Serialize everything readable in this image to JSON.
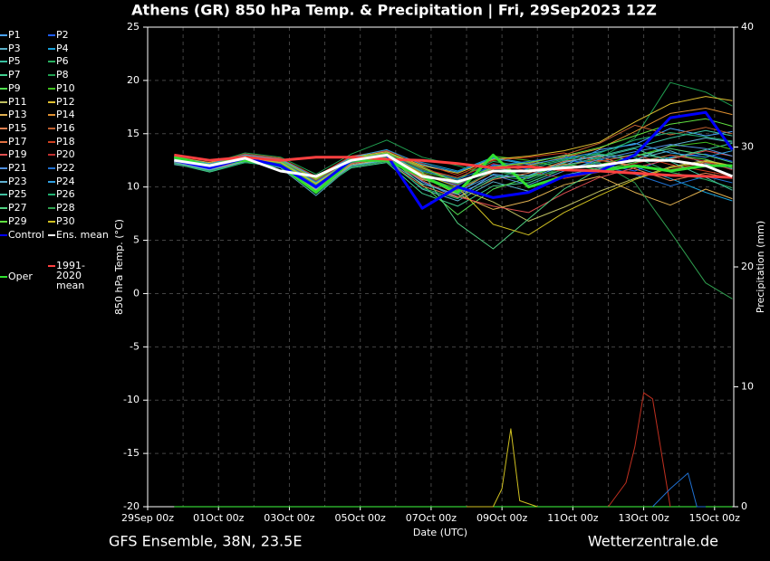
{
  "chart_data": {
    "type": "line",
    "title": "Athens  (GR)  850 hPa Temp. & Precipitation | Fri, 29Sep2023 12Z",
    "xlabel": "Date (UTC)",
    "ylabel": "850 hPa Temp. (°C)",
    "y2label": "Precipitation (mm)",
    "footer_left": "GFS Ensemble, 38N, 23.5E",
    "footer_right": "Wetterzentrale.de",
    "xlim": [
      0,
      397
    ],
    "ylim": [
      -20,
      25
    ],
    "y2lim": [
      0,
      40
    ],
    "grid": true,
    "xticks": [
      {
        "value": 0,
        "label": "29Sep 00z"
      },
      {
        "value": 48,
        "label": "01Oct 00z"
      },
      {
        "value": 96,
        "label": "03Oct 00z"
      },
      {
        "value": 144,
        "label": "05Oct 00z"
      },
      {
        "value": 192,
        "label": "07Oct 00z"
      },
      {
        "value": 240,
        "label": "09Oct 00z"
      },
      {
        "value": 288,
        "label": "11Oct 00z"
      },
      {
        "value": 336,
        "label": "13Oct 00z"
      },
      {
        "value": 384,
        "label": "15Oct 00z"
      }
    ],
    "xminorgrid": [
      24,
      72,
      120,
      168,
      216,
      264,
      312,
      360
    ],
    "yticks": [
      -20,
      -15,
      -10,
      -5,
      0,
      5,
      10,
      15,
      20,
      25
    ],
    "y2ticks": [
      0,
      10,
      20,
      30,
      40
    ],
    "x": [
      18,
      42,
      66,
      90,
      114,
      138,
      162,
      186,
      210,
      234,
      258,
      282,
      306,
      330,
      354,
      378,
      396
    ],
    "series": [
      {
        "name": "P1",
        "color": "#4aa3ff",
        "values": [
          12.3,
          11.5,
          12.4,
          12.1,
          9.8,
          12.2,
          12.8,
          10.5,
          9.0,
          11.2,
          10.8,
          12.0,
          13.5,
          14.0,
          15.5,
          14.8,
          15.2
        ]
      },
      {
        "name": "P2",
        "color": "#1e5cff",
        "values": [
          12.6,
          11.8,
          12.9,
          12.4,
          10.5,
          12.6,
          13.4,
          11.2,
          10.1,
          12.1,
          11.7,
          12.5,
          12.2,
          11.5,
          12.8,
          13.1,
          12.4
        ]
      },
      {
        "name": "P3",
        "color": "#5ab0c8",
        "values": [
          12.1,
          11.6,
          12.5,
          11.8,
          9.2,
          12.0,
          12.6,
          9.8,
          8.7,
          10.5,
          9.6,
          11.1,
          11.8,
          12.6,
          13.4,
          12.2,
          11.7
        ]
      },
      {
        "name": "P4",
        "color": "#18a0d8",
        "values": [
          12.8,
          12.1,
          13.1,
          12.6,
          10.9,
          12.9,
          13.0,
          12.3,
          11.5,
          12.8,
          12.2,
          13.0,
          12.6,
          11.9,
          10.8,
          9.5,
          8.7
        ]
      },
      {
        "name": "P5",
        "color": "#38c0a0",
        "values": [
          12.4,
          11.9,
          12.7,
          12.2,
          10.1,
          12.4,
          12.5,
          10.9,
          9.4,
          11.6,
          11.0,
          12.3,
          12.9,
          13.7,
          14.6,
          15.3,
          14.8
        ]
      },
      {
        "name": "P6",
        "color": "#28b060",
        "values": [
          12.7,
          12.0,
          12.8,
          12.5,
          10.6,
          12.7,
          13.2,
          11.6,
          10.8,
          12.4,
          11.9,
          12.6,
          13.1,
          12.8,
          11.4,
          10.7,
          9.9
        ]
      },
      {
        "name": "P7",
        "color": "#40d090",
        "values": [
          12.2,
          11.4,
          12.3,
          11.9,
          9.6,
          11.8,
          12.3,
          9.4,
          8.2,
          10.1,
          10.4,
          11.7,
          12.4,
          13.1,
          12.7,
          13.5,
          14.1
        ]
      },
      {
        "name": "P8",
        "color": "#20a050",
        "values": [
          12.9,
          12.2,
          13.2,
          12.8,
          11.2,
          13.1,
          14.4,
          12.8,
          12.0,
          11.1,
          10.6,
          11.9,
          12.7,
          14.6,
          19.8,
          18.9,
          17.6
        ]
      },
      {
        "name": "P9",
        "color": "#50e050",
        "values": [
          12.5,
          11.7,
          12.6,
          12.0,
          9.9,
          12.3,
          12.9,
          10.2,
          7.4,
          9.8,
          10.9,
          12.2,
          11.6,
          12.3,
          13.0,
          12.6,
          11.8
        ]
      },
      {
        "name": "P10",
        "color": "#40c020",
        "values": [
          12.6,
          11.9,
          12.9,
          12.3,
          10.3,
          12.5,
          13.1,
          11.4,
          10.6,
          12.9,
          12.5,
          11.8,
          12.1,
          12.9,
          13.8,
          14.2,
          13.5
        ]
      },
      {
        "name": "P11",
        "color": "#c0c060",
        "values": [
          12.3,
          11.6,
          12.5,
          12.1,
          9.7,
          12.1,
          12.6,
          10.7,
          9.9,
          8.6,
          6.8,
          8.1,
          9.6,
          10.8,
          11.9,
          12.5,
          12.0
        ]
      },
      {
        "name": "P12",
        "color": "#e0c030",
        "values": [
          12.8,
          12.3,
          13.0,
          12.7,
          10.8,
          12.8,
          13.3,
          12.0,
          11.3,
          12.6,
          12.9,
          13.4,
          14.2,
          16.1,
          17.8,
          18.5,
          18.1
        ]
      },
      {
        "name": "P13",
        "color": "#e0b050",
        "values": [
          12.4,
          11.8,
          12.7,
          12.2,
          10.2,
          12.4,
          13.0,
          11.0,
          9.3,
          7.9,
          8.7,
          10.2,
          11.0,
          9.5,
          8.3,
          9.8,
          8.9
        ]
      },
      {
        "name": "P14",
        "color": "#e09030",
        "values": [
          12.7,
          12.1,
          13.0,
          12.6,
          10.7,
          12.7,
          13.2,
          11.9,
          10.5,
          11.7,
          12.0,
          12.8,
          13.6,
          15.2,
          16.9,
          17.4,
          16.8
        ]
      },
      {
        "name": "P15",
        "color": "#e08050",
        "values": [
          12.2,
          11.5,
          12.4,
          12.0,
          9.5,
          11.9,
          12.4,
          10.1,
          9.0,
          10.7,
          11.3,
          12.4,
          12.9,
          11.7,
          10.6,
          11.3,
          10.8
        ]
      },
      {
        "name": "P16",
        "color": "#c06030",
        "values": [
          12.6,
          12.0,
          12.8,
          12.4,
          10.4,
          12.6,
          13.1,
          11.3,
          10.2,
          11.9,
          12.2,
          13.0,
          14.1,
          15.8,
          14.9,
          15.6,
          15.0
        ]
      },
      {
        "name": "P17",
        "color": "#e07040",
        "values": [
          12.5,
          11.8,
          12.6,
          12.3,
          10.0,
          12.4,
          12.8,
          10.8,
          9.7,
          11.4,
          11.6,
          12.1,
          12.5,
          12.0,
          11.6,
          12.3,
          11.9
        ]
      },
      {
        "name": "P18",
        "color": "#d04020",
        "values": [
          12.8,
          12.2,
          13.1,
          12.7,
          11.0,
          12.9,
          13.4,
          12.2,
          11.1,
          12.5,
          12.8,
          13.2,
          12.4,
          13.0,
          12.1,
          11.5,
          11.0
        ]
      },
      {
        "name": "P19",
        "color": "#e05050",
        "values": [
          12.3,
          11.7,
          12.5,
          12.1,
          9.9,
          12.2,
          12.7,
          10.6,
          9.1,
          8.2,
          7.6,
          9.4,
          10.9,
          11.8,
          12.6,
          13.4,
          12.9
        ]
      },
      {
        "name": "P20",
        "color": "#c03030",
        "values": [
          12.7,
          12.1,
          12.9,
          12.5,
          10.6,
          12.6,
          13.2,
          11.7,
          10.9,
          12.2,
          11.5,
          10.8,
          11.4,
          12.2,
          13.0,
          12.4,
          11.6
        ]
      },
      {
        "name": "P21",
        "color": "#5090e0",
        "values": [
          12.4,
          11.7,
          12.6,
          12.2,
          10.1,
          12.3,
          12.8,
          10.9,
          9.6,
          11.1,
          10.2,
          11.5,
          12.6,
          13.3,
          14.0,
          13.6,
          12.9
        ]
      },
      {
        "name": "P22",
        "color": "#2070d0",
        "values": [
          12.6,
          12.0,
          12.8,
          12.4,
          10.5,
          12.5,
          13.0,
          11.5,
          10.7,
          12.0,
          12.4,
          12.9,
          12.0,
          11.2,
          10.1,
          11.0,
          10.4
        ]
      },
      {
        "name": "P23",
        "color": "#60b0d0",
        "values": [
          12.3,
          11.6,
          12.4,
          12.0,
          9.6,
          12.0,
          12.5,
          10.3,
          9.3,
          10.9,
          11.1,
          12.3,
          13.0,
          12.5,
          13.9,
          14.6,
          14.2
        ]
      },
      {
        "name": "P24",
        "color": "#30a0e0",
        "values": [
          12.8,
          12.2,
          13.0,
          12.6,
          10.9,
          12.8,
          13.5,
          12.1,
          11.4,
          12.7,
          12.1,
          12.7,
          13.3,
          14.1,
          13.2,
          12.8,
          13.4
        ]
      },
      {
        "name": "P25",
        "color": "#40c0a0",
        "values": [
          12.5,
          11.9,
          12.7,
          12.3,
          10.3,
          12.4,
          12.9,
          11.2,
          10.3,
          11.8,
          11.4,
          12.0,
          12.8,
          13.6,
          12.4,
          10.9,
          9.7
        ]
      },
      {
        "name": "P26",
        "color": "#20b070",
        "values": [
          12.2,
          11.5,
          12.3,
          11.9,
          9.4,
          11.9,
          12.4,
          9.9,
          8.9,
          10.8,
          11.7,
          12.5,
          13.2,
          14.4,
          15.1,
          14.7,
          14.3
        ]
      },
      {
        "name": "P27",
        "color": "#50d080",
        "values": [
          12.6,
          12.0,
          12.8,
          12.4,
          10.4,
          12.6,
          13.1,
          11.4,
          6.6,
          4.2,
          7.0,
          9.8,
          11.7,
          12.9,
          13.6,
          13.0,
          12.3
        ]
      },
      {
        "name": "P28",
        "color": "#30a050",
        "values": [
          12.4,
          11.8,
          12.6,
          12.2,
          10.2,
          12.3,
          12.8,
          11.0,
          9.8,
          11.5,
          10.9,
          11.6,
          12.3,
          10.4,
          5.8,
          1.0,
          -0.5
        ]
      },
      {
        "name": "P29",
        "color": "#60e040",
        "values": [
          12.7,
          12.1,
          12.9,
          12.5,
          10.7,
          12.7,
          13.2,
          11.8,
          10.4,
          11.9,
          12.3,
          12.9,
          13.7,
          14.8,
          15.9,
          16.4,
          15.7
        ]
      },
      {
        "name": "P30",
        "color": "#d0c020",
        "values": [
          12.5,
          11.9,
          12.7,
          12.3,
          10.3,
          12.5,
          13.0,
          11.2,
          10.0,
          6.5,
          5.5,
          7.6,
          9.2,
          10.7,
          11.8,
          12.4,
          12.0
        ]
      },
      {
        "name": "Control",
        "color": "#0000ff",
        "width": 3,
        "values": [
          12.5,
          11.8,
          12.7,
          12.0,
          10.0,
          12.5,
          13.0,
          8.0,
          10.0,
          9.0,
          9.5,
          11.0,
          11.5,
          13.0,
          16.5,
          17.0,
          13.5
        ]
      },
      {
        "name": "Ens. mean",
        "color": "#ffffff",
        "width": 3,
        "values": [
          12.5,
          12.0,
          12.7,
          11.5,
          11.0,
          12.5,
          13.0,
          11.0,
          10.5,
          11.5,
          11.5,
          11.8,
          12.0,
          12.5,
          12.5,
          12.0,
          11.0
        ]
      },
      {
        "name": "1991-2020 mean",
        "color": "#ff4040",
        "width": 3,
        "values": [
          13.0,
          12.5,
          12.8,
          12.5,
          12.8,
          12.8,
          12.6,
          12.5,
          12.2,
          11.8,
          11.9,
          11.6,
          11.5,
          11.3,
          11.1,
          11.0,
          10.9
        ]
      },
      {
        "name": "Oper",
        "color": "#30e030",
        "width": 3,
        "values": [
          12.8,
          12.0,
          12.5,
          12.0,
          9.5,
          12.5,
          12.5,
          11.0,
          9.5,
          13.0,
          10.0,
          11.0,
          11.5,
          12.0,
          11.5,
          12.0,
          12.0
        ]
      }
    ],
    "precipitation": [
      {
        "color": "#40ff40",
        "x": [
          18,
          396
        ],
        "values": [
          0,
          0
        ]
      },
      {
        "color": "#d0c020",
        "x": [
          216,
          234,
          240,
          246,
          252,
          264
        ],
        "values": [
          0,
          0,
          1.5,
          6.5,
          0.5,
          0
        ]
      },
      {
        "color": "#c03020",
        "x": [
          312,
          324,
          330,
          336,
          342,
          354
        ],
        "values": [
          0,
          2,
          5,
          9.5,
          9,
          0
        ]
      },
      {
        "color": "#2070d0",
        "x": [
          342,
          354,
          366,
          372,
          378
        ],
        "values": [
          0,
          1.5,
          2.8,
          0,
          0
        ]
      }
    ]
  }
}
